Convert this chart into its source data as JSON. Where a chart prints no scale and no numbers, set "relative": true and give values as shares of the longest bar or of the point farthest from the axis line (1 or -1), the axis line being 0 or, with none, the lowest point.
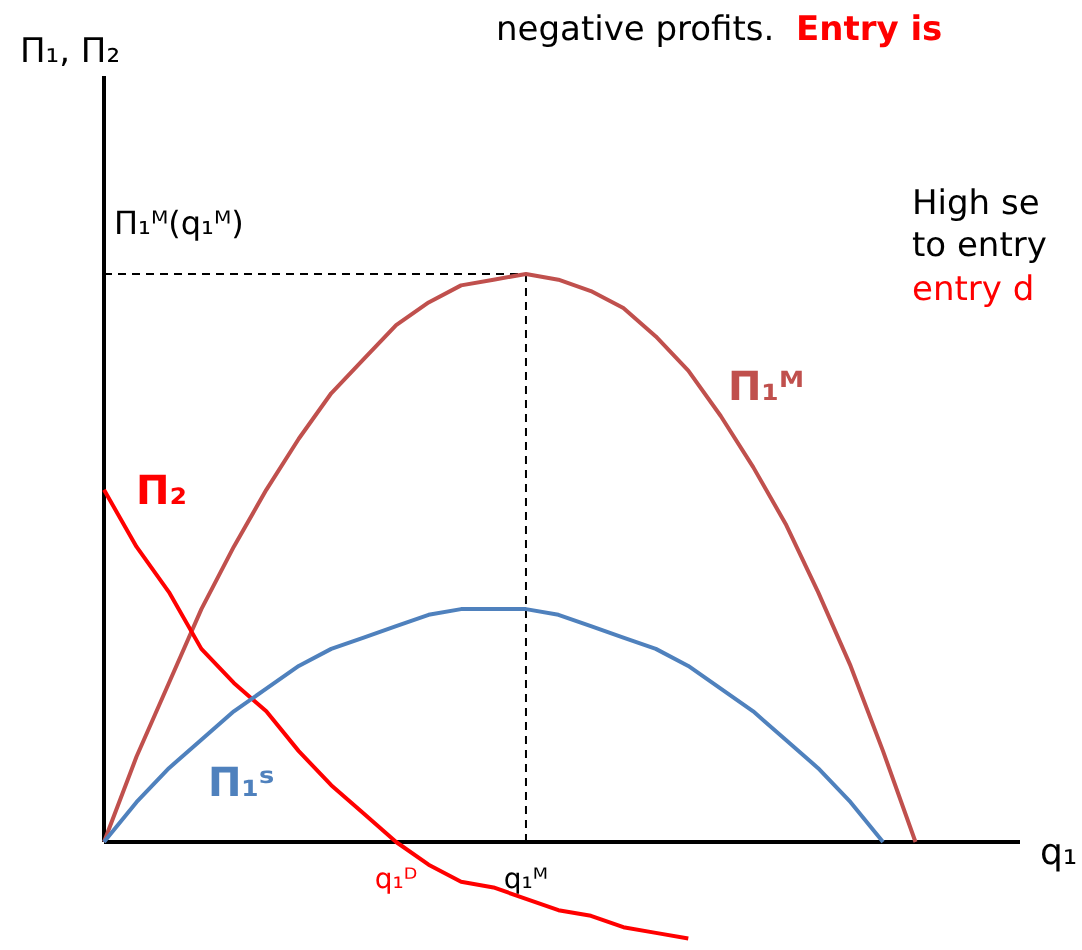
{
  "chart_data": {
    "type": "line",
    "relative": true,
    "xlabel": "q₁",
    "categories": [
      null,
      null,
      null,
      null,
      null,
      null,
      null,
      null,
      null,
      "q₁ᴰ",
      null,
      null,
      null,
      "q₁ᴹ",
      null,
      null,
      null,
      null,
      null,
      null,
      null,
      null,
      null,
      null,
      null,
      null,
      null,
      null,
      null
    ],
    "tick_labels": "x",
    "marker": "none",
    "line_style": "solid",
    "ref_lines": [
      {
        "axis": "y",
        "value": 1,
        "label": "Π₁ᴹ(q₁ᴹ)",
        "line_style": "dashed",
        "color": "#000000"
      },
      {
        "axis": "x",
        "value": "q₁ᴹ",
        "label": null,
        "line_style": "dashed",
        "color": "#000000"
      }
    ],
    "annotations": [
      "Π₁, Π₂",
      "negative profits.",
      "Entry is",
      "High se",
      "to entry",
      "entry d"
    ],
    "series": [
      {
        "name": "Π₁ᴹ",
        "color": "#c0504d",
        "values": [
          0,
          0.15,
          0.28,
          0.41,
          0.52,
          0.62,
          0.71,
          0.79,
          0.85,
          0.91,
          0.95,
          0.98,
          0.99,
          1,
          0.99,
          0.97,
          0.94,
          0.89,
          0.83,
          0.75,
          0.66,
          0.56,
          0.44,
          0.31,
          0.16,
          0,
          null,
          null,
          null
        ]
      },
      {
        "name": "Π₂",
        "color": "#ff0000",
        "values": [
          0.62,
          0.52,
          0.44,
          0.34,
          0.28,
          0.23,
          0.16,
          0.1,
          0.05,
          0,
          -0.04,
          -0.07,
          -0.08,
          -0.1,
          -0.12,
          -0.13,
          -0.15,
          -0.16,
          -0.17,
          null,
          null,
          null,
          null,
          null,
          null,
          null,
          null,
          null,
          null
        ]
      },
      {
        "name": "Π₁ˢ",
        "color": "#4f81bd",
        "values": [
          0,
          0.07,
          0.13,
          0.18,
          0.23,
          0.27,
          0.31,
          0.34,
          0.36,
          0.38,
          0.4,
          0.41,
          0.41,
          0.41,
          0.4,
          0.38,
          0.36,
          0.34,
          0.31,
          0.27,
          0.23,
          0.18,
          0.13,
          0.07,
          0,
          null,
          null,
          null,
          null
        ]
      }
    ]
  }
}
